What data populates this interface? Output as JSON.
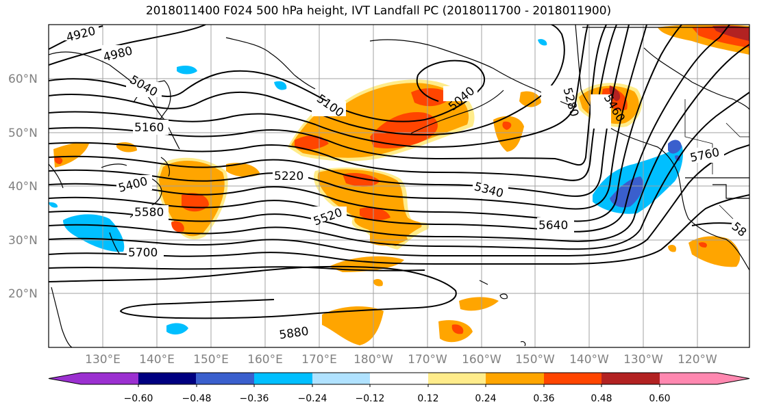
{
  "title": "2018011400 F024 500 hPa height, IVT Landfall PC (2018011700 - 2018011900)",
  "lat_labels": [
    "60°N",
    "50°N",
    "40°N",
    "30°N",
    "20°N"
  ],
  "lon_labels": [
    "130°E",
    "140°E",
    "150°E",
    "160°E",
    "170°E",
    "180°W",
    "170°W",
    "160°W",
    "150°W",
    "140°W",
    "130°W",
    "120°W"
  ],
  "contour_labels": [
    "4920",
    "4980",
    "5040",
    "5100",
    "5040",
    "5160",
    "5280",
    "5460",
    "5220",
    "5400",
    "5340",
    "5520",
    "5580",
    "5640",
    "5760",
    "5700",
    "5880",
    "58"
  ],
  "colorbar": {
    "ticks": [
      "−0.60",
      "−0.48",
      "−0.36",
      "−0.24",
      "−0.12",
      "0.12",
      "0.24",
      "0.36",
      "0.48",
      "0.60"
    ],
    "colors": [
      "#9b30d0",
      "#000080",
      "#3a5fcd",
      "#00bfff",
      "#b0e2ff",
      "#ffffff",
      "#ffec8b",
      "#ffa500",
      "#ff4500",
      "#b22222",
      "#ff88b0"
    ]
  },
  "shading_colors": {
    "orange": "#ffa500",
    "light_yellow": "#ffec8b",
    "red_orange": "#ff4500",
    "deep_sky_blue": "#00bfff",
    "royal_blue": "#3a5fcd"
  }
}
